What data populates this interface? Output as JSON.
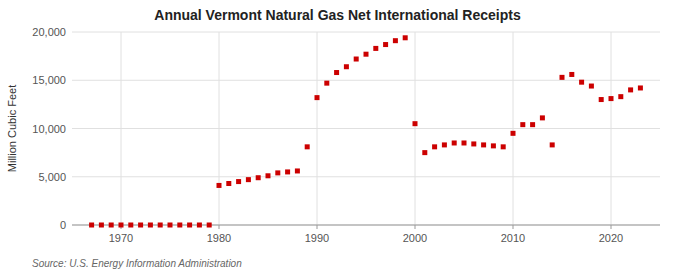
{
  "chart_data": {
    "type": "scatter",
    "title": "Annual Vermont Natural Gas Net International Receipts",
    "ylabel": "Million Cubic Feet",
    "source": "Source: U.S. Energy Information Administration",
    "x": [
      1967,
      1968,
      1969,
      1970,
      1971,
      1972,
      1973,
      1974,
      1975,
      1976,
      1977,
      1978,
      1979,
      1980,
      1981,
      1982,
      1983,
      1984,
      1985,
      1986,
      1987,
      1988,
      1989,
      1990,
      1991,
      1992,
      1993,
      1994,
      1995,
      1996,
      1997,
      1998,
      1999,
      2000,
      2001,
      2002,
      2003,
      2004,
      2005,
      2006,
      2007,
      2008,
      2009,
      2010,
      2011,
      2012,
      2013,
      2014,
      2015,
      2016,
      2017,
      2018,
      2019,
      2020,
      2021,
      2022,
      2023
    ],
    "values": [
      0,
      0,
      0,
      0,
      0,
      0,
      0,
      0,
      0,
      0,
      0,
      0,
      0,
      4100,
      4300,
      4500,
      4700,
      4900,
      5100,
      5400,
      5500,
      5600,
      8100,
      13200,
      14700,
      15800,
      16400,
      17200,
      17700,
      18300,
      18700,
      19100,
      19400,
      10500,
      7500,
      8100,
      8300,
      8500,
      8500,
      8400,
      8300,
      8200,
      8100,
      9500,
      10400,
      10400,
      11100,
      8300,
      15300,
      15600,
      14800,
      14400,
      13000,
      13100,
      13300,
      14000,
      14200
    ],
    "color": "#cc0000",
    "marker": "square",
    "xlim": [
      1965,
      2025
    ],
    "ylim": [
      0,
      20000
    ],
    "xticks": [
      1970,
      1980,
      1990,
      2000,
      2010,
      2020
    ],
    "yticks": [
      0,
      {
        "value": 5000,
        "label": "5,000"
      },
      {
        "value": 10000,
        "label": "10,000"
      },
      {
        "value": 15000,
        "label": "15,000"
      },
      {
        "value": 20000,
        "label": "20,000"
      }
    ],
    "grid": true
  }
}
